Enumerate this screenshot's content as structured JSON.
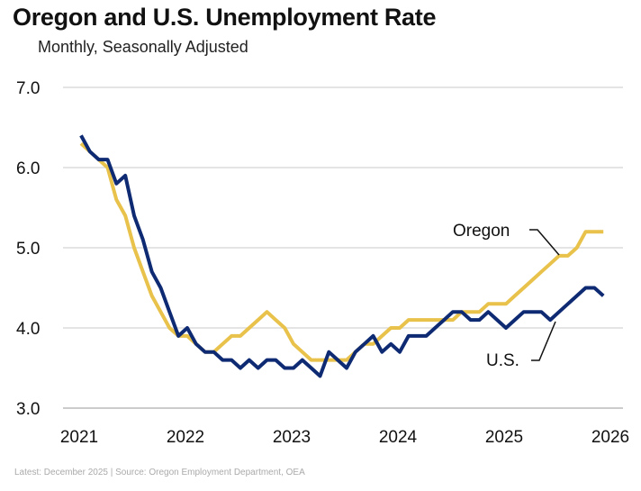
{
  "chart_data": {
    "type": "line",
    "title": "Oregon and U.S. Unemployment Rate",
    "subtitle": "Monthly, Seasonally Adjusted",
    "xlabel": "",
    "ylabel": "",
    "ylim": [
      3.0,
      7.0
    ],
    "yticks": [
      "3.0",
      "4.0",
      "5.0",
      "6.0",
      "7.0"
    ],
    "xticks": [
      "2021",
      "2022",
      "2023",
      "2024",
      "2025",
      "2026"
    ],
    "x_start": "2021-01",
    "x_end": "2025-12",
    "grid": true,
    "series": [
      {
        "name": "Oregon",
        "color": "#E8C24A",
        "values": [
          6.3,
          6.2,
          6.1,
          6.0,
          5.6,
          5.4,
          5.0,
          4.7,
          4.4,
          4.2,
          4.0,
          3.9,
          3.9,
          3.8,
          3.7,
          3.7,
          3.8,
          3.9,
          3.9,
          4.0,
          4.1,
          4.2,
          4.1,
          4.0,
          3.8,
          3.7,
          3.6,
          3.6,
          3.6,
          3.6,
          3.6,
          3.7,
          3.8,
          3.8,
          3.9,
          4.0,
          4.0,
          4.1,
          4.1,
          4.1,
          4.1,
          4.1,
          4.1,
          4.2,
          4.2,
          4.2,
          4.3,
          4.3,
          4.3,
          4.4,
          4.5,
          4.6,
          4.7,
          4.8,
          4.9,
          4.9,
          5.0,
          5.2,
          5.2,
          5.2
        ]
      },
      {
        "name": "U.S.",
        "color": "#0E2A73",
        "values": [
          6.4,
          6.2,
          6.1,
          6.1,
          5.8,
          5.9,
          5.4,
          5.1,
          4.7,
          4.5,
          4.2,
          3.9,
          4.0,
          3.8,
          3.7,
          3.7,
          3.6,
          3.6,
          3.5,
          3.6,
          3.5,
          3.6,
          3.6,
          3.5,
          3.5,
          3.6,
          3.5,
          3.4,
          3.7,
          3.6,
          3.5,
          3.7,
          3.8,
          3.9,
          3.7,
          3.8,
          3.7,
          3.9,
          3.9,
          3.9,
          4.0,
          4.1,
          4.2,
          4.2,
          4.1,
          4.1,
          4.2,
          4.1,
          4.0,
          4.1,
          4.2,
          4.2,
          4.2,
          4.1,
          4.2,
          4.3,
          4.4,
          4.5,
          4.5,
          4.4
        ]
      }
    ],
    "annotations": [
      "Oregon",
      "U.S."
    ],
    "footer": "Latest: December 2025 | Source: Oregon Employment Department, OEA"
  }
}
